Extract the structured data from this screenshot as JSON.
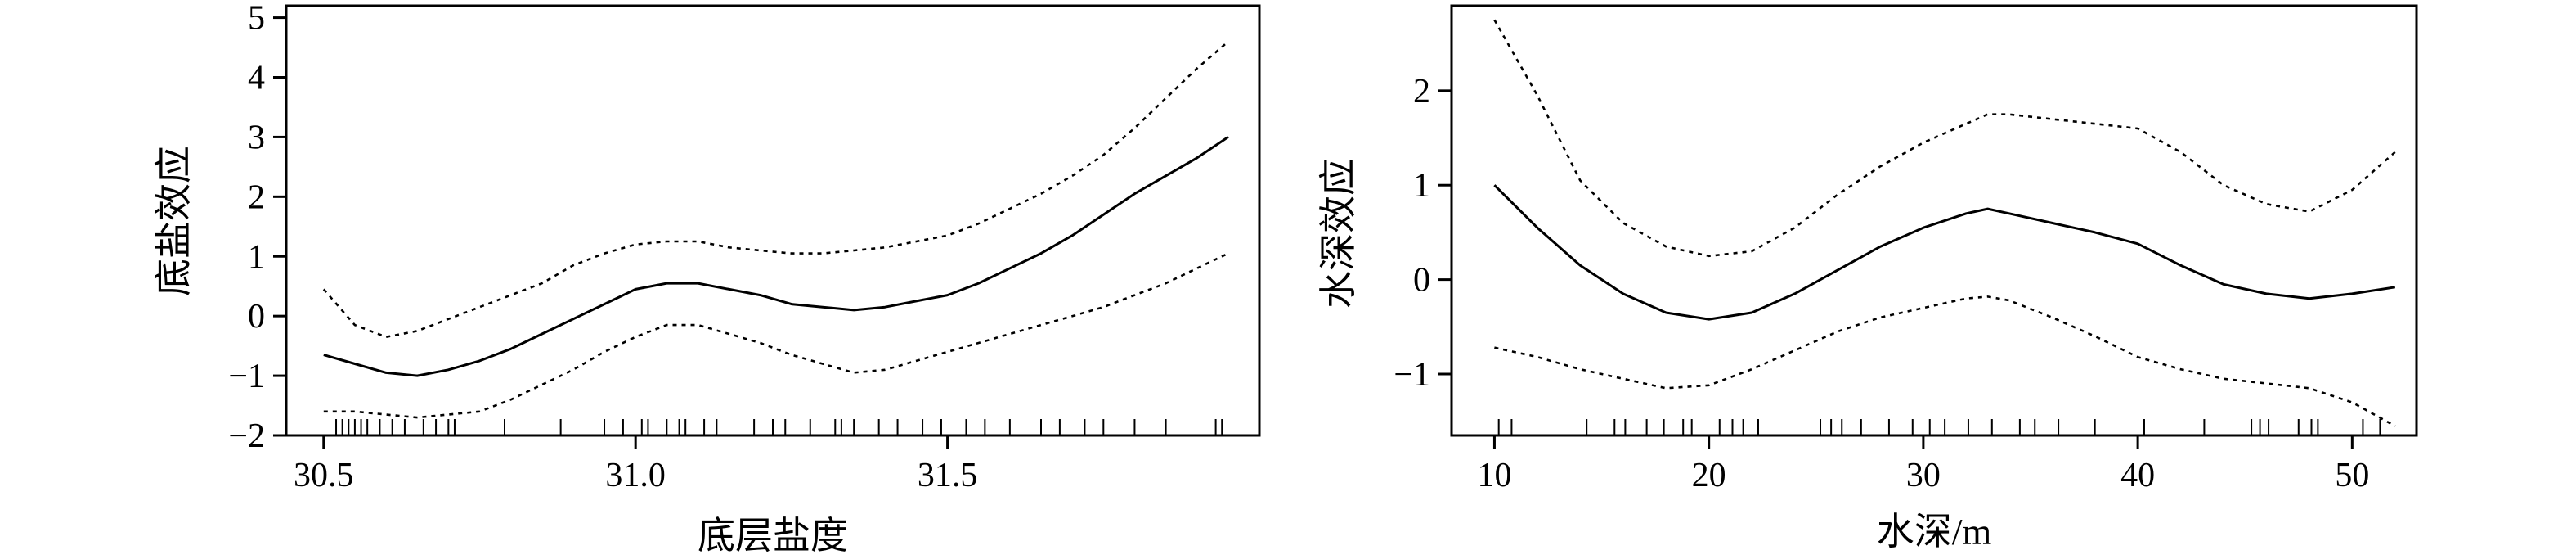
{
  "chart_data": [
    {
      "type": "line",
      "xlabel": "底层盐度",
      "ylabel": "底盐效应",
      "xlim": [
        30.44,
        32.0
      ],
      "ylim": [
        -2.0,
        5.2
      ],
      "xticks": [
        {
          "value": 30.5,
          "label": "30.5"
        },
        {
          "value": 31.0,
          "label": "31.0"
        },
        {
          "value": 31.5,
          "label": "31.5"
        }
      ],
      "yticks": [
        {
          "value": -2,
          "label": "−2"
        },
        {
          "value": -1,
          "label": "−1"
        },
        {
          "value": 0,
          "label": "0"
        },
        {
          "value": 1,
          "label": "1"
        },
        {
          "value": 2,
          "label": "2"
        },
        {
          "value": 3,
          "label": "3"
        },
        {
          "value": 4,
          "label": "4"
        },
        {
          "value": 5,
          "label": "5"
        }
      ],
      "series": [
        {
          "role": "fit",
          "style": "solid",
          "x": [
            30.5,
            30.55,
            30.6,
            30.65,
            30.7,
            30.75,
            30.8,
            30.85,
            30.9,
            30.95,
            31.0,
            31.05,
            31.1,
            31.15,
            31.2,
            31.25,
            31.3,
            31.35,
            31.4,
            31.45,
            31.5,
            31.55,
            31.6,
            31.65,
            31.7,
            31.75,
            31.8,
            31.85,
            31.9,
            31.95
          ],
          "values": [
            -0.65,
            -0.8,
            -0.95,
            -1.0,
            -0.9,
            -0.75,
            -0.55,
            -0.3,
            -0.05,
            0.2,
            0.45,
            0.55,
            0.55,
            0.45,
            0.35,
            0.2,
            0.15,
            0.1,
            0.15,
            0.25,
            0.35,
            0.55,
            0.8,
            1.05,
            1.35,
            1.7,
            2.05,
            2.35,
            2.65,
            3.0
          ]
        },
        {
          "role": "upper",
          "style": "dotted",
          "x": [
            30.5,
            30.55,
            30.6,
            30.65,
            30.7,
            30.75,
            30.8,
            30.85,
            30.9,
            30.95,
            31.0,
            31.05,
            31.1,
            31.15,
            31.2,
            31.25,
            31.3,
            31.35,
            31.4,
            31.45,
            31.5,
            31.55,
            31.6,
            31.65,
            31.7,
            31.75,
            31.8,
            31.85,
            31.9,
            31.95
          ],
          "values": [
            0.45,
            -0.15,
            -0.35,
            -0.25,
            -0.05,
            0.15,
            0.35,
            0.55,
            0.85,
            1.05,
            1.2,
            1.25,
            1.25,
            1.15,
            1.1,
            1.05,
            1.05,
            1.1,
            1.15,
            1.25,
            1.35,
            1.55,
            1.8,
            2.05,
            2.35,
            2.7,
            3.15,
            3.65,
            4.15,
            4.6
          ]
        },
        {
          "role": "lower",
          "style": "dotted",
          "x": [
            30.5,
            30.55,
            30.6,
            30.65,
            30.7,
            30.75,
            30.8,
            30.85,
            30.9,
            30.95,
            31.0,
            31.05,
            31.1,
            31.15,
            31.2,
            31.25,
            31.3,
            31.35,
            31.4,
            31.45,
            31.5,
            31.55,
            31.6,
            31.65,
            31.7,
            31.75,
            31.8,
            31.85,
            31.9,
            31.95
          ],
          "values": [
            -1.6,
            -1.6,
            -1.65,
            -1.7,
            -1.65,
            -1.6,
            -1.4,
            -1.15,
            -0.9,
            -0.6,
            -0.35,
            -0.15,
            -0.15,
            -0.3,
            -0.45,
            -0.65,
            -0.8,
            -0.95,
            -0.9,
            -0.75,
            -0.6,
            -0.45,
            -0.3,
            -0.15,
            0.0,
            0.15,
            0.35,
            0.55,
            0.8,
            1.05
          ]
        }
      ],
      "rug": [
        30.52,
        30.53,
        30.54,
        30.55,
        30.56,
        30.57,
        30.59,
        30.61,
        30.63,
        30.66,
        30.68,
        30.7,
        30.71,
        30.79,
        30.88,
        30.95,
        30.98,
        31.01,
        31.02,
        31.05,
        31.07,
        31.08,
        31.11,
        31.13,
        31.19,
        31.22,
        31.24,
        31.28,
        31.32,
        31.33,
        31.35,
        31.39,
        31.42,
        31.46,
        31.49,
        31.53,
        31.56,
        31.6,
        31.65,
        31.68,
        31.72,
        31.75,
        31.8,
        31.85,
        31.93,
        31.94
      ]
    },
    {
      "type": "line",
      "xlabel": "水深/m",
      "ylabel": "水深效应",
      "xlim": [
        8.0,
        53.0
      ],
      "ylim": [
        -1.65,
        2.9
      ],
      "xticks": [
        {
          "value": 10,
          "label": "10"
        },
        {
          "value": 20,
          "label": "20"
        },
        {
          "value": 30,
          "label": "30"
        },
        {
          "value": 40,
          "label": "40"
        },
        {
          "value": 50,
          "label": "50"
        }
      ],
      "yticks": [
        {
          "value": -1,
          "label": "−1"
        },
        {
          "value": 0,
          "label": "0"
        },
        {
          "value": 1,
          "label": "1"
        },
        {
          "value": 2,
          "label": "2"
        }
      ],
      "series": [
        {
          "role": "fit",
          "style": "solid",
          "x": [
            10,
            12,
            14,
            16,
            18,
            20,
            22,
            24,
            26,
            28,
            30,
            32,
            33,
            34,
            36,
            38,
            40,
            42,
            44,
            46,
            48,
            50,
            52
          ],
          "values": [
            1.0,
            0.55,
            0.15,
            -0.15,
            -0.35,
            -0.42,
            -0.35,
            -0.15,
            0.1,
            0.35,
            0.55,
            0.7,
            0.75,
            0.7,
            0.6,
            0.5,
            0.38,
            0.15,
            -0.05,
            -0.15,
            -0.2,
            -0.15,
            -0.08
          ]
        },
        {
          "role": "upper",
          "style": "dotted",
          "x": [
            10,
            12,
            14,
            16,
            18,
            20,
            22,
            24,
            26,
            28,
            30,
            32,
            33,
            34,
            36,
            38,
            40,
            42,
            44,
            46,
            48,
            50,
            52
          ],
          "values": [
            2.75,
            1.95,
            1.05,
            0.6,
            0.35,
            0.25,
            0.3,
            0.55,
            0.9,
            1.2,
            1.45,
            1.65,
            1.75,
            1.75,
            1.7,
            1.65,
            1.6,
            1.35,
            1.0,
            0.8,
            0.72,
            0.95,
            1.35
          ]
        },
        {
          "role": "lower",
          "style": "dotted",
          "x": [
            10,
            12,
            14,
            16,
            18,
            20,
            22,
            24,
            26,
            28,
            30,
            32,
            33,
            34,
            36,
            38,
            40,
            42,
            44,
            46,
            48,
            50,
            52
          ],
          "values": [
            -0.72,
            -0.82,
            -0.95,
            -1.05,
            -1.15,
            -1.12,
            -0.95,
            -0.75,
            -0.55,
            -0.4,
            -0.3,
            -0.2,
            -0.18,
            -0.22,
            -0.4,
            -0.6,
            -0.82,
            -0.95,
            -1.05,
            -1.1,
            -1.15,
            -1.3,
            -1.55
          ]
        }
      ],
      "rug": [
        10.2,
        10.8,
        14.3,
        15.6,
        16.1,
        17.1,
        17.9,
        18.8,
        19.2,
        20.5,
        21.1,
        21.6,
        22.3,
        25.2,
        25.7,
        26.2,
        27.1,
        28.4,
        29.5,
        30.3,
        31.0,
        32.1,
        33.2,
        34.5,
        35.2,
        36.3,
        38.0,
        40.3,
        43.1,
        45.3,
        45.7,
        46.1,
        47.5,
        48.1,
        48.4,
        50.5,
        51.3
      ]
    }
  ]
}
